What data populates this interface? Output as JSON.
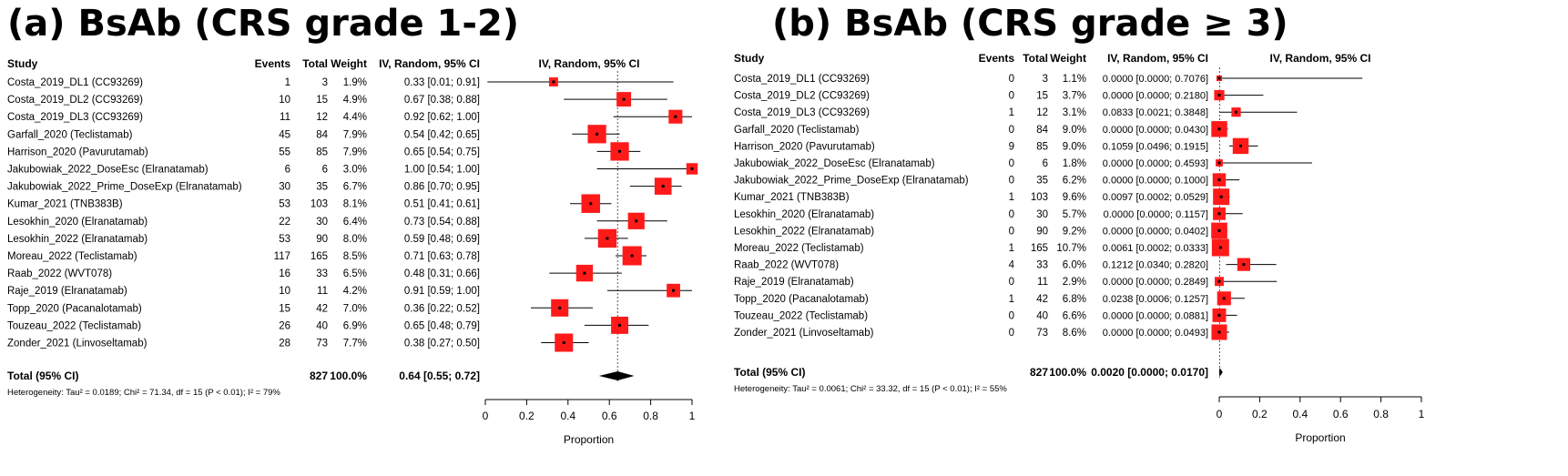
{
  "chart_data": [
    {
      "type": "forest",
      "title": "(a) BsAb (CRS grade 1-2)",
      "columns": {
        "study": "Study",
        "events": "Events",
        "total": "Total",
        "weight": "Weight",
        "ci": "IV, Random, 95% CI",
        "plot": "IV, Random, 95% CI"
      },
      "rows": [
        {
          "study": "Costa_2019_DL1 (CC93269)",
          "events": "1",
          "total": "3",
          "weight": "1.9%",
          "ci": "0.33 [0.01; 0.91]",
          "est": 0.33,
          "lo": 0.01,
          "hi": 0.91,
          "w": 1.9
        },
        {
          "study": "Costa_2019_DL2 (CC93269)",
          "events": "10",
          "total": "15",
          "weight": "4.9%",
          "ci": "0.67 [0.38; 0.88]",
          "est": 0.67,
          "lo": 0.38,
          "hi": 0.88,
          "w": 4.9
        },
        {
          "study": "Costa_2019_DL3 (CC93269)",
          "events": "11",
          "total": "12",
          "weight": "4.4%",
          "ci": "0.92 [0.62; 1.00]",
          "est": 0.92,
          "lo": 0.62,
          "hi": 1.0,
          "w": 4.4
        },
        {
          "study": "Garfall_2020 (Teclistamab)",
          "events": "45",
          "total": "84",
          "weight": "7.9%",
          "ci": "0.54 [0.42; 0.65]",
          "est": 0.54,
          "lo": 0.42,
          "hi": 0.65,
          "w": 7.9
        },
        {
          "study": "Harrison_2020 (Pavurutamab)",
          "events": "55",
          "total": "85",
          "weight": "7.9%",
          "ci": "0.65 [0.54; 0.75]",
          "est": 0.65,
          "lo": 0.54,
          "hi": 0.75,
          "w": 7.9
        },
        {
          "study": "Jakubowiak_2022_DoseEsc (Elranatamab)",
          "events": "6",
          "total": "6",
          "weight": "3.0%",
          "ci": "1.00 [0.54; 1.00]",
          "est": 1.0,
          "lo": 0.54,
          "hi": 1.0,
          "w": 3.0
        },
        {
          "study": "Jakubowiak_2022_Prime_DoseExp (Elranatamab)",
          "events": "30",
          "total": "35",
          "weight": "6.7%",
          "ci": "0.86 [0.70; 0.95]",
          "est": 0.86,
          "lo": 0.7,
          "hi": 0.95,
          "w": 6.7
        },
        {
          "study": "Kumar_2021 (TNB383B)",
          "events": "53",
          "total": "103",
          "weight": "8.1%",
          "ci": "0.51 [0.41; 0.61]",
          "est": 0.51,
          "lo": 0.41,
          "hi": 0.61,
          "w": 8.1
        },
        {
          "study": "Lesokhin_2020 (Elranatamab)",
          "events": "22",
          "total": "30",
          "weight": "6.4%",
          "ci": "0.73 [0.54; 0.88]",
          "est": 0.73,
          "lo": 0.54,
          "hi": 0.88,
          "w": 6.4
        },
        {
          "study": "Lesokhin_2022 (Elranatamab)",
          "events": "53",
          "total": "90",
          "weight": "8.0%",
          "ci": "0.59 [0.48; 0.69]",
          "est": 0.59,
          "lo": 0.48,
          "hi": 0.69,
          "w": 8.0
        },
        {
          "study": "Moreau_2022 (Teclistamab)",
          "events": "117",
          "total": "165",
          "weight": "8.5%",
          "ci": "0.71 [0.63; 0.78]",
          "est": 0.71,
          "lo": 0.63,
          "hi": 0.78,
          "w": 8.5
        },
        {
          "study": "Raab_2022 (WVT078)",
          "events": "16",
          "total": "33",
          "weight": "6.5%",
          "ci": "0.48 [0.31; 0.66]",
          "est": 0.48,
          "lo": 0.31,
          "hi": 0.66,
          "w": 6.5
        },
        {
          "study": "Raje_2019 (Elranatamab)",
          "events": "10",
          "total": "11",
          "weight": "4.2%",
          "ci": "0.91 [0.59; 1.00]",
          "est": 0.91,
          "lo": 0.59,
          "hi": 1.0,
          "w": 4.2
        },
        {
          "study": "Topp_2020 (Pacanalotamab)",
          "events": "15",
          "total": "42",
          "weight": "7.0%",
          "ci": "0.36 [0.22; 0.52]",
          "est": 0.36,
          "lo": 0.22,
          "hi": 0.52,
          "w": 7.0
        },
        {
          "study": "Touzeau_2022 (Teclistamab)",
          "events": "26",
          "total": "40",
          "weight": "6.9%",
          "ci": "0.65 [0.48; 0.79]",
          "est": 0.65,
          "lo": 0.48,
          "hi": 0.79,
          "w": 6.9
        },
        {
          "study": "Zonder_2021 (Linvoseltamab)",
          "events": "28",
          "total": "73",
          "weight": "7.7%",
          "ci": "0.38 [0.27; 0.50]",
          "est": 0.38,
          "lo": 0.27,
          "hi": 0.5,
          "w": 7.7
        }
      ],
      "total": {
        "label": "Total (95% CI)",
        "total": "827",
        "weight": "100.0%",
        "ci": "0.64 [0.55; 0.72]",
        "est": 0.64,
        "lo": 0.55,
        "hi": 0.72
      },
      "heterogeneity": "Heterogeneity: Tau² = 0.0189; Chi² = 71.34, df = 15 (P < 0.01); I² = 79%",
      "xlim": [
        0,
        1
      ],
      "ticks": [
        0,
        0.2,
        0.4,
        0.6,
        0.8,
        1
      ],
      "tick_labels": [
        "0",
        "0.2",
        "0.4",
        "0.6",
        "0.8",
        "1"
      ],
      "xlabel": "Proportion"
    },
    {
      "type": "forest",
      "title": "(b) BsAb (CRS grade ≥ 3)",
      "columns": {
        "study": "Study",
        "events": "Events",
        "total": "Total",
        "weight": "Weight",
        "ci": "IV, Random, 95% CI",
        "plot": "IV, Random, 95% CI"
      },
      "rows": [
        {
          "study": "Costa_2019_DL1 (CC93269)",
          "events": "0",
          "total": "3",
          "weight": "1.1%",
          "ci": "0.0000 [0.0000; 0.7076]",
          "est": 0.0,
          "lo": 0.0,
          "hi": 0.7076,
          "w": 1.1
        },
        {
          "study": "Costa_2019_DL2 (CC93269)",
          "events": "0",
          "total": "15",
          "weight": "3.7%",
          "ci": "0.0000 [0.0000; 0.2180]",
          "est": 0.0,
          "lo": 0.0,
          "hi": 0.218,
          "w": 3.7
        },
        {
          "study": "Costa_2019_DL3 (CC93269)",
          "events": "1",
          "total": "12",
          "weight": "3.1%",
          "ci": "0.0833 [0.0021; 0.3848]",
          "est": 0.0833,
          "lo": 0.0021,
          "hi": 0.3848,
          "w": 3.1
        },
        {
          "study": "Garfall_2020 (Teclistamab)",
          "events": "0",
          "total": "84",
          "weight": "9.0%",
          "ci": "0.0000 [0.0000; 0.0430]",
          "est": 0.0,
          "lo": 0.0,
          "hi": 0.043,
          "w": 9.0
        },
        {
          "study": "Harrison_2020 (Pavurutamab)",
          "events": "9",
          "total": "85",
          "weight": "9.0%",
          "ci": "0.1059 [0.0496; 0.1915]",
          "est": 0.1059,
          "lo": 0.0496,
          "hi": 0.1915,
          "w": 9.0
        },
        {
          "study": "Jakubowiak_2022_DoseEsc (Elranatamab)",
          "events": "0",
          "total": "6",
          "weight": "1.8%",
          "ci": "0.0000 [0.0000; 0.4593]",
          "est": 0.0,
          "lo": 0.0,
          "hi": 0.4593,
          "w": 1.8
        },
        {
          "study": "Jakubowiak_2022_Prime_DoseExp (Elranatamab)",
          "events": "0",
          "total": "35",
          "weight": "6.2%",
          "ci": "0.0000 [0.0000; 0.1000]",
          "est": 0.0,
          "lo": 0.0,
          "hi": 0.1,
          "w": 6.2
        },
        {
          "study": "Kumar_2021 (TNB383B)",
          "events": "1",
          "total": "103",
          "weight": "9.6%",
          "ci": "0.0097 [0.0002; 0.0529]",
          "est": 0.0097,
          "lo": 0.0002,
          "hi": 0.0529,
          "w": 9.6
        },
        {
          "study": "Lesokhin_2020 (Elranatamab)",
          "events": "0",
          "total": "30",
          "weight": "5.7%",
          "ci": "0.0000 [0.0000; 0.1157]",
          "est": 0.0,
          "lo": 0.0,
          "hi": 0.1157,
          "w": 5.7
        },
        {
          "study": "Lesokhin_2022 (Elranatamab)",
          "events": "0",
          "total": "90",
          "weight": "9.2%",
          "ci": "0.0000 [0.0000; 0.0402]",
          "est": 0.0,
          "lo": 0.0,
          "hi": 0.0402,
          "w": 9.2
        },
        {
          "study": "Moreau_2022 (Teclistamab)",
          "events": "1",
          "total": "165",
          "weight": "10.7%",
          "ci": "0.0061 [0.0002; 0.0333]",
          "est": 0.0061,
          "lo": 0.0002,
          "hi": 0.0333,
          "w": 10.7
        },
        {
          "study": "Raab_2022 (WVT078)",
          "events": "4",
          "total": "33",
          "weight": "6.0%",
          "ci": "0.1212 [0.0340; 0.2820]",
          "est": 0.1212,
          "lo": 0.034,
          "hi": 0.282,
          "w": 6.0
        },
        {
          "study": "Raje_2019 (Elranatamab)",
          "events": "0",
          "total": "11",
          "weight": "2.9%",
          "ci": "0.0000 [0.0000; 0.2849]",
          "est": 0.0,
          "lo": 0.0,
          "hi": 0.2849,
          "w": 2.9
        },
        {
          "study": "Topp_2020 (Pacanalotamab)",
          "events": "1",
          "total": "42",
          "weight": "6.8%",
          "ci": "0.0238 [0.0006; 0.1257]",
          "est": 0.0238,
          "lo": 0.0006,
          "hi": 0.1257,
          "w": 6.8
        },
        {
          "study": "Touzeau_2022 (Teclistamab)",
          "events": "0",
          "total": "40",
          "weight": "6.6%",
          "ci": "0.0000 [0.0000; 0.0881]",
          "est": 0.0,
          "lo": 0.0,
          "hi": 0.0881,
          "w": 6.6
        },
        {
          "study": "Zonder_2021 (Linvoseltamab)",
          "events": "0",
          "total": "73",
          "weight": "8.6%",
          "ci": "0.0000 [0.0000; 0.0493]",
          "est": 0.0,
          "lo": 0.0,
          "hi": 0.0493,
          "w": 8.6
        }
      ],
      "total": {
        "label": "Total (95% CI)",
        "total": "827",
        "weight": "100.0%",
        "ci": "0.0020 [0.0000; 0.0170]",
        "est": 0.002,
        "lo": 0.0,
        "hi": 0.017
      },
      "heterogeneity": "Heterogeneity: Tau² = 0.0061; Chi² = 33.32, df = 15 (P < 0.01); I² = 55%",
      "xlim": [
        0,
        1
      ],
      "ticks": [
        0,
        0.2,
        0.4,
        0.6,
        0.8,
        1
      ],
      "tick_labels": [
        "0",
        "0.2",
        "0.4",
        "0.6",
        "0.8",
        "1"
      ],
      "xlabel": "Proportion"
    }
  ],
  "colors": {
    "marker": "#ff1a1a",
    "line": "#000000",
    "dashed": "#555555",
    "diamond": "#000000"
  }
}
